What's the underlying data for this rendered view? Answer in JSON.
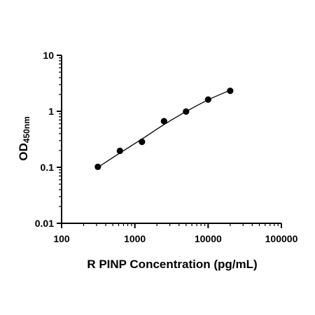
{
  "chart_data": {
    "type": "scatter",
    "title": "",
    "xlabel": "R PINP Concentration (pg/mL)",
    "ylabel_main": "OD",
    "ylabel_sub": "450nm",
    "x_scale": "log",
    "y_scale": "log",
    "xlim": [
      100,
      100000
    ],
    "ylim": [
      0.01,
      10
    ],
    "x_ticks": [
      100,
      1000,
      10000,
      100000
    ],
    "x_tick_labels": [
      "100",
      "1000",
      "10000",
      "100000"
    ],
    "y_ticks": [
      0.01,
      0.1,
      1,
      10
    ],
    "y_tick_labels": [
      "0.01",
      "0.1",
      "1",
      "10"
    ],
    "grid": false,
    "legend": "none",
    "series": [
      {
        "points": [
          {
            "x": 312.5,
            "y": 0.102
          },
          {
            "x": 625,
            "y": 0.197
          },
          {
            "x": 1250,
            "y": 0.285
          },
          {
            "x": 2500,
            "y": 0.667
          },
          {
            "x": 5000,
            "y": 0.99
          },
          {
            "x": 10000,
            "y": 1.62
          },
          {
            "x": 20000,
            "y": 2.32
          }
        ],
        "fit_curve": {
          "x": [
            312.5,
            625,
            1250,
            2500,
            5000,
            10000,
            20000
          ],
          "y": [
            0.1,
            0.18,
            0.32,
            0.58,
            0.99,
            1.6,
            2.38
          ]
        },
        "color": "#000000"
      }
    ]
  }
}
